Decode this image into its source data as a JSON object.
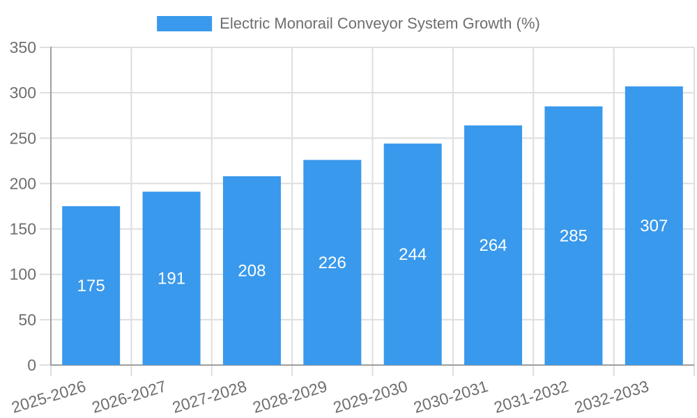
{
  "chart_data": {
    "type": "bar",
    "title": "Electric Monorail Conveyor System Growth (%)",
    "categories": [
      "2025-2026",
      "2026-2027",
      "2027-2028",
      "2028-2029",
      "2029-2030",
      "2030-2031",
      "2031-2032",
      "2032-2033"
    ],
    "series": [
      {
        "name": "Electric Monorail Conveyor System Growth (%)",
        "values": [
          175,
          191,
          208,
          226,
          244,
          264,
          285,
          307
        ]
      }
    ],
    "xlabel": "",
    "ylabel": "",
    "ylim": [
      0,
      350
    ],
    "ytick_step": 50,
    "yticks": [
      0,
      50,
      100,
      150,
      200,
      250,
      300,
      350
    ],
    "grid": true,
    "legend_position": "top-center",
    "value_labels": "inside-center",
    "x_label_rotation_deg": -17,
    "colors": {
      "bar": "#3999EC",
      "bar_value_label": "#FFFFFF",
      "grid": "#DEDEDE",
      "axis": "#9E9E9E",
      "tick_label": "#6E6E6E",
      "title": "#6E6E6E",
      "background": "#FFFFFF"
    }
  }
}
